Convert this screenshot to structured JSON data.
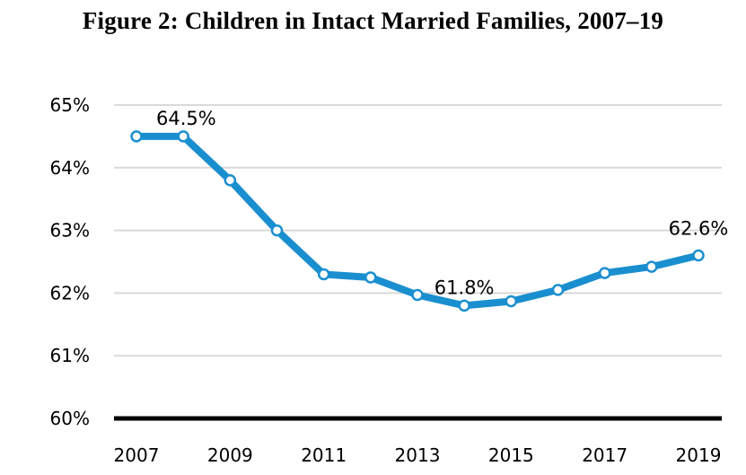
{
  "chart_data": {
    "type": "line",
    "title": "Figure 2: Children in Intact Married Families, 2007–19",
    "xlabel": "",
    "ylabel": "",
    "ylim": [
      60,
      65
    ],
    "yticks": [
      "60%",
      "61%",
      "62%",
      "63%",
      "64%",
      "65%"
    ],
    "xticks": [
      "2007",
      "2009",
      "2011",
      "2013",
      "2015",
      "2017",
      "2019"
    ],
    "grid": true,
    "x": [
      2007,
      2008,
      2009,
      2010,
      2011,
      2012,
      2013,
      2014,
      2015,
      2016,
      2017,
      2018,
      2019
    ],
    "series": [
      {
        "values": [
          64.5,
          64.5,
          63.8,
          63.0,
          62.3,
          62.25,
          61.97,
          61.8,
          61.87,
          62.05,
          62.32,
          62.42,
          62.6
        ]
      }
    ],
    "annotations": [
      {
        "x": 2007,
        "y": 64.5,
        "text": "64.5%"
      },
      {
        "x": 2014,
        "y": 61.8,
        "text": "61.8%"
      },
      {
        "x": 2019,
        "y": 62.6,
        "text": "62.6%"
      }
    ],
    "colors": {
      "line": "#1a8fd0",
      "marker_fill": "#ffffff",
      "grid": "#d9d9d9",
      "baseline": "#000000"
    }
  }
}
